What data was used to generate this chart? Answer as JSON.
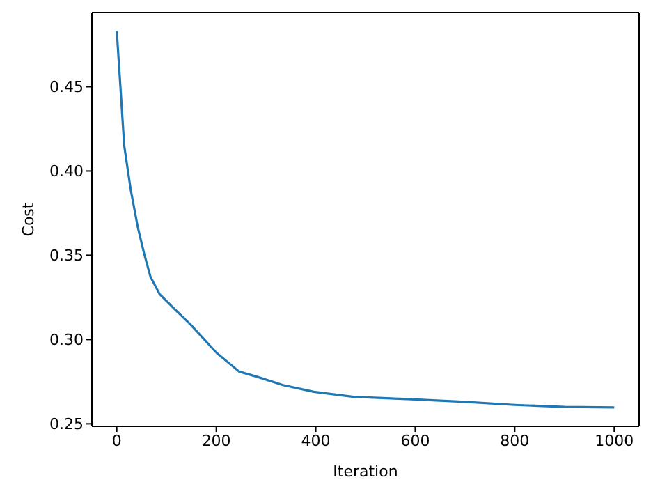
{
  "chart_data": {
    "type": "line",
    "xlabel": "Iteration",
    "ylabel": "Cost",
    "x": [
      0,
      6,
      15,
      28,
      42,
      55,
      68,
      86,
      113,
      148,
      201,
      246,
      281,
      334,
      396,
      476,
      600,
      700,
      800,
      900,
      1000
    ],
    "series": [
      {
        "color": "#1f77b4",
        "values": [
          0.483,
          0.456,
          0.415,
          0.389,
          0.367,
          0.351,
          0.337,
          0.327,
          0.319,
          0.309,
          0.292,
          0.281,
          0.278,
          0.273,
          0.269,
          0.266,
          0.2645,
          0.263,
          0.2612,
          0.26,
          0.2597
        ]
      }
    ],
    "xlim": [
      -50,
      1050
    ],
    "ylim": [
      0.2485,
      0.494
    ],
    "xticks": [
      0,
      200,
      400,
      600,
      800,
      1000
    ],
    "yticks": [
      {
        "value": 0.25,
        "label": "0.25"
      },
      {
        "value": 0.3,
        "label": "0.30"
      },
      0.35,
      {
        "value": 0.4,
        "label": "0.40"
      },
      0.45
    ],
    "grid": false,
    "legend": false,
    "marker": "none",
    "line_style": "solid"
  }
}
